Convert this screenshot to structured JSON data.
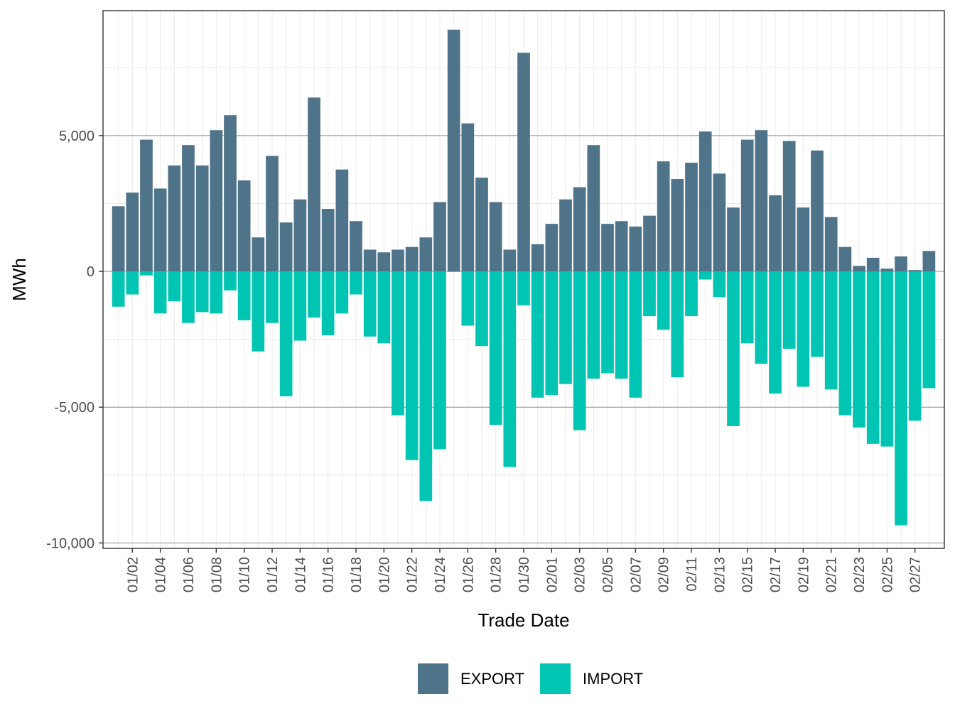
{
  "chart_data": {
    "type": "bar",
    "stacked": "diverging",
    "xlabel": "Trade Date",
    "ylabel": "MWh",
    "ylim": [
      -10200,
      9600
    ],
    "yticks": [
      -10000,
      -5000,
      0,
      5000
    ],
    "ytick_labels": [
      "-10,000",
      "-5,000",
      "0",
      "5,000"
    ],
    "x_tick_labels": [
      "01/02",
      "01/04",
      "01/06",
      "01/08",
      "01/10",
      "01/12",
      "01/14",
      "01/16",
      "01/18",
      "01/20",
      "01/22",
      "01/24",
      "01/26",
      "01/28",
      "01/30",
      "02/01",
      "02/03",
      "02/05",
      "02/07",
      "02/09",
      "02/11",
      "02/13",
      "02/15",
      "02/17",
      "02/19",
      "02/21",
      "02/23",
      "02/25",
      "02/27"
    ],
    "categories": [
      "01/01",
      "01/02",
      "01/03",
      "01/04",
      "01/05",
      "01/06",
      "01/07",
      "01/08",
      "01/09",
      "01/10",
      "01/11",
      "01/12",
      "01/13",
      "01/14",
      "01/15",
      "01/16",
      "01/17",
      "01/18",
      "01/19",
      "01/20",
      "01/21",
      "01/22",
      "01/23",
      "01/24",
      "01/25",
      "01/26",
      "01/27",
      "01/28",
      "01/29",
      "01/30",
      "01/31",
      "02/01",
      "02/02",
      "02/03",
      "02/04",
      "02/05",
      "02/06",
      "02/07",
      "02/08",
      "02/09",
      "02/10",
      "02/11",
      "02/12",
      "02/13",
      "02/14",
      "02/15",
      "02/16",
      "02/17",
      "02/18",
      "02/19",
      "02/20",
      "02/21",
      "02/22",
      "02/23",
      "02/24",
      "02/25",
      "02/26",
      "02/27",
      "02/28"
    ],
    "grid": true,
    "legend_position": "bottom",
    "series": [
      {
        "name": "EXPORT",
        "color": "#4f7389",
        "values": [
          2400,
          2900,
          4850,
          3050,
          3900,
          4650,
          3900,
          5200,
          5750,
          3350,
          1250,
          4250,
          1800,
          2650,
          6400,
          2300,
          3750,
          1850,
          800,
          700,
          800,
          900,
          1250,
          2550,
          8900,
          5450,
          3450,
          2550,
          800,
          8050,
          1000,
          1750,
          2650,
          3100,
          4650,
          1750,
          1850,
          1650,
          2050,
          4050,
          3400,
          4000,
          5150,
          3600,
          2350,
          4850,
          5200,
          2800,
          4800,
          2350,
          4450,
          2000,
          900,
          200,
          500,
          100,
          550,
          50,
          750
        ]
      },
      {
        "name": "IMPORT",
        "color": "#00c5b2",
        "values": [
          -1300,
          -850,
          -150,
          -1550,
          -1100,
          -1900,
          -1500,
          -1550,
          -700,
          -1800,
          -2950,
          -1900,
          -4600,
          -2550,
          -1700,
          -2350,
          -1550,
          -850,
          -2400,
          -2650,
          -5300,
          -6950,
          -8450,
          -6550,
          -20,
          -2000,
          -2750,
          -5650,
          -7200,
          -1250,
          -4650,
          -4550,
          -4150,
          -5850,
          -3950,
          -3750,
          -3950,
          -4650,
          -1650,
          -2150,
          -3900,
          -1650,
          -300,
          -950,
          -5700,
          -2650,
          -3400,
          -4500,
          -2850,
          -4250,
          -3150,
          -4350,
          -5300,
          -5750,
          -6350,
          -6450,
          -9350,
          -5500,
          -4300
        ]
      }
    ]
  }
}
